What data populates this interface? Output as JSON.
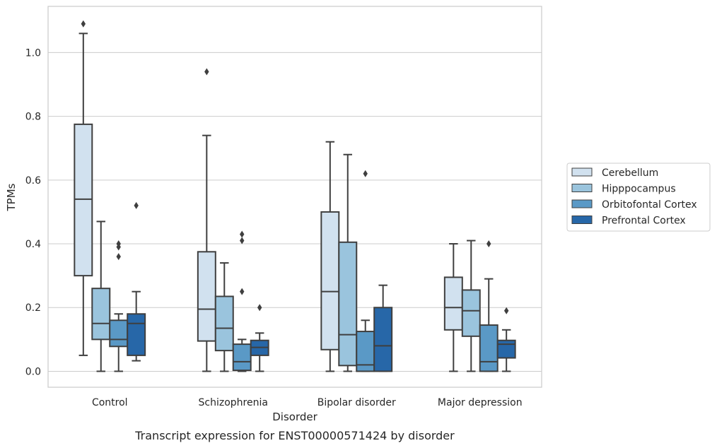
{
  "chart_data": {
    "type": "box",
    "caption": "Transcript expression for ENST00000571424 by disorder",
    "xlabel": "Disorder",
    "ylabel": "TPMs",
    "ylim": [
      -0.05,
      1.145
    ],
    "yticks": [
      0.0,
      0.2,
      0.4,
      0.6,
      0.8,
      1.0
    ],
    "ytick_labels": [
      "0.0",
      "0.2",
      "0.4",
      "0.6",
      "0.8",
      "1.0"
    ],
    "grid": "horizontal",
    "legend_position": "right",
    "categories": [
      "Control",
      "Schizophrenia",
      "Bipolar disorder",
      "Major depression"
    ],
    "series": [
      {
        "name": "Cerebellum",
        "color": "#d1e1ef",
        "boxes": [
          {
            "whislo": 0.05,
            "q1": 0.3,
            "med": 0.54,
            "q3": 0.775,
            "whishi": 1.06,
            "fliers": [
              1.09
            ]
          },
          {
            "whislo": 0.0,
            "q1": 0.095,
            "med": 0.195,
            "q3": 0.375,
            "whishi": 0.74,
            "fliers": [
              0.94
            ]
          },
          {
            "whislo": 0.0,
            "q1": 0.068,
            "med": 0.25,
            "q3": 0.5,
            "whishi": 0.72,
            "fliers": []
          },
          {
            "whislo": 0.0,
            "q1": 0.13,
            "med": 0.2,
            "q3": 0.295,
            "whishi": 0.4,
            "fliers": []
          }
        ]
      },
      {
        "name": "Hipppocampus",
        "color": "#9ac4dd",
        "boxes": [
          {
            "whislo": 0.0,
            "q1": 0.1,
            "med": 0.15,
            "q3": 0.26,
            "whishi": 0.47,
            "fliers": []
          },
          {
            "whislo": 0.0,
            "q1": 0.065,
            "med": 0.135,
            "q3": 0.235,
            "whishi": 0.34,
            "fliers": []
          },
          {
            "whislo": 0.0,
            "q1": 0.018,
            "med": 0.115,
            "q3": 0.405,
            "whishi": 0.68,
            "fliers": []
          },
          {
            "whislo": 0.0,
            "q1": 0.11,
            "med": 0.19,
            "q3": 0.255,
            "whishi": 0.41,
            "fliers": []
          }
        ]
      },
      {
        "name": "Orbitofontal Cortex",
        "color": "#5a99c6",
        "boxes": [
          {
            "whislo": 0.0,
            "q1": 0.078,
            "med": 0.1,
            "q3": 0.16,
            "whishi": 0.18,
            "fliers": [
              0.36,
              0.39,
              0.4
            ]
          },
          {
            "whislo": 0.0,
            "q1": 0.003,
            "med": 0.03,
            "q3": 0.085,
            "whishi": 0.1,
            "fliers": [
              0.25,
              0.41,
              0.43
            ]
          },
          {
            "whislo": 0.0,
            "q1": 0.0,
            "med": 0.02,
            "q3": 0.125,
            "whishi": 0.16,
            "fliers": [
              0.62
            ]
          },
          {
            "whislo": 0.0,
            "q1": 0.0,
            "med": 0.03,
            "q3": 0.145,
            "whishi": 0.29,
            "fliers": [
              0.4
            ]
          }
        ]
      },
      {
        "name": "Prefrontal Cortex",
        "color": "#2767a8",
        "boxes": [
          {
            "whislo": 0.033,
            "q1": 0.05,
            "med": 0.15,
            "q3": 0.18,
            "whishi": 0.25,
            "fliers": [
              0.52
            ]
          },
          {
            "whislo": 0.0,
            "q1": 0.05,
            "med": 0.075,
            "q3": 0.097,
            "whishi": 0.12,
            "fliers": [
              0.2
            ]
          },
          {
            "whislo": 0.0,
            "q1": 0.0,
            "med": 0.08,
            "q3": 0.2,
            "whishi": 0.27,
            "fliers": []
          },
          {
            "whislo": 0.0,
            "q1": 0.042,
            "med": 0.085,
            "q3": 0.097,
            "whishi": 0.13,
            "fliers": [
              0.19
            ]
          }
        ]
      }
    ]
  }
}
